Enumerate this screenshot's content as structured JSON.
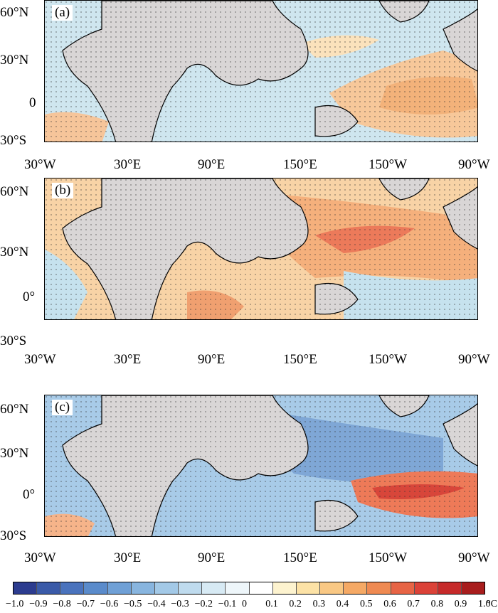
{
  "panels": [
    {
      "label": "(a)",
      "pattern": "a"
    },
    {
      "label": "(b)",
      "pattern": "b"
    },
    {
      "label": "(c)",
      "pattern": "c"
    }
  ],
  "lat_labels": [
    "60°N",
    "30°N",
    "0",
    "30°S"
  ],
  "lat_labels_bc": [
    "60°N",
    "30°N",
    "0°",
    "30°S"
  ],
  "lon_labels": [
    "30°W",
    "30°E",
    "90°E",
    "150°E",
    "150°W",
    "90°W"
  ],
  "colorbar": {
    "labels": [
      "−1.0",
      "−0.9",
      "−0.8",
      "−0.7",
      "−0.6",
      "−0.5",
      "−0.4",
      "−0.3",
      "−0.2",
      "−0.1",
      "0",
      "0.1",
      "0.2",
      "0.3",
      "0.4",
      "0.5",
      "0.6",
      "0.7",
      "0.8",
      "0.9",
      "1.0"
    ],
    "unit": "°C",
    "colors": [
      "#2c3c8f",
      "#3a5aa8",
      "#4a73bd",
      "#5a8bcb",
      "#6fa0d6",
      "#88b5df",
      "#a3c9e7",
      "#bfdbee",
      "#d7eaf4",
      "#eef6fa",
      "#ffffff",
      "#fdf3cf",
      "#fce2a6",
      "#f9c884",
      "#f5a965",
      "#ef8a52",
      "#e76445",
      "#db4238",
      "#c62a2a",
      "#a81d1d"
    ]
  },
  "colors": {
    "land": "#d9d6d6",
    "ocean_neg": "#c6e2ee",
    "ocean_warm": "#f7c08a",
    "ocean_hot": "#ec6a4f",
    "ocean_cold": "#7ea9d8"
  }
}
